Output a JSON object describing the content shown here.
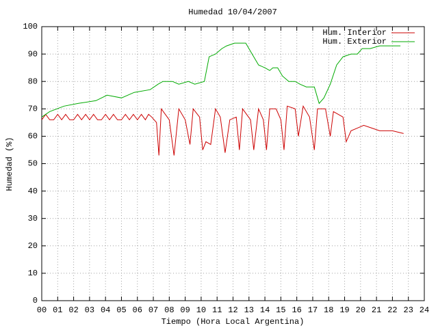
{
  "chart_data": {
    "type": "line",
    "title": "Humedad 10/04/2007",
    "xlabel": "Tiempo (Hora Local Argentina)",
    "ylabel": "Humedad (%)",
    "xlim": [
      0,
      24
    ],
    "ylim": [
      0,
      100
    ],
    "xticks": [
      {
        "value": 0,
        "label": "00"
      },
      {
        "value": 1,
        "label": "01"
      },
      {
        "value": 2,
        "label": "02"
      },
      {
        "value": 3,
        "label": "03"
      },
      {
        "value": 4,
        "label": "04"
      },
      {
        "value": 5,
        "label": "05"
      },
      {
        "value": 6,
        "label": "06"
      },
      {
        "value": 7,
        "label": "07"
      },
      {
        "value": 8,
        "label": "08"
      },
      {
        "value": 9,
        "label": "09"
      },
      {
        "value": 10,
        "label": "10"
      },
      {
        "value": 11,
        "label": "11"
      },
      {
        "value": 12,
        "label": "12"
      },
      {
        "value": 13,
        "label": "13"
      },
      {
        "value": 14,
        "label": "14"
      },
      {
        "value": 15,
        "label": "15"
      },
      {
        "value": 16,
        "label": "16"
      },
      {
        "value": 17,
        "label": "17"
      },
      {
        "value": 18,
        "label": "18"
      },
      {
        "value": 19,
        "label": "19"
      },
      {
        "value": 20,
        "label": "20"
      },
      {
        "value": 21,
        "label": "21"
      },
      {
        "value": 22,
        "label": "22"
      },
      {
        "value": 23,
        "label": "23"
      },
      {
        "value": 24,
        "label": "24"
      }
    ],
    "yticks": [
      0,
      10,
      20,
      30,
      40,
      50,
      60,
      70,
      80,
      90,
      100
    ],
    "grid": true,
    "legend": "top-right",
    "series": [
      {
        "name": "Hum. Interior",
        "color": "#cc0000",
        "x": [
          0,
          0.25,
          0.5,
          0.75,
          1,
          1.25,
          1.5,
          1.75,
          2,
          2.25,
          2.5,
          2.75,
          3,
          3.25,
          3.5,
          3.75,
          4,
          4.25,
          4.5,
          4.75,
          5,
          5.25,
          5.5,
          5.75,
          6,
          6.25,
          6.5,
          6.7,
          6.9,
          7.2,
          7.35,
          7.5,
          8.0,
          8.3,
          8.6,
          9.0,
          9.3,
          9.5,
          9.9,
          10.1,
          10.3,
          10.6,
          10.9,
          11.2,
          11.5,
          11.8,
          12.2,
          12.4,
          12.6,
          13.1,
          13.3,
          13.6,
          13.9,
          14.1,
          14.3,
          14.7,
          15.0,
          15.2,
          15.4,
          15.9,
          16.1,
          16.4,
          16.8,
          17.1,
          17.3,
          17.8,
          18.1,
          18.3,
          18.9,
          19.1,
          19.4,
          19.8,
          20.2,
          20.7,
          21.2,
          22.0,
          22.7
        ],
        "values": [
          66,
          68,
          66,
          66,
          68,
          66,
          68,
          66,
          66,
          68,
          66,
          68,
          66,
          68,
          66,
          66,
          68,
          66,
          68,
          66,
          66,
          68,
          66,
          68,
          66,
          68,
          66,
          68,
          67,
          65,
          53,
          70,
          66,
          53,
          70,
          66,
          57,
          70,
          67,
          55,
          58,
          57,
          70,
          67,
          54,
          66,
          67,
          55,
          70,
          66,
          55,
          70,
          66,
          55,
          70,
          70,
          66,
          55,
          71,
          70,
          60,
          71,
          67,
          55,
          70,
          70,
          60,
          69,
          67,
          58,
          62,
          63,
          64,
          63,
          62,
          62,
          61
        ]
      },
      {
        "name": "Hum. Exterior",
        "color": "#00aa00",
        "x": [
          0,
          0.5,
          1.4,
          2.3,
          3.4,
          4.1,
          5,
          5.8,
          6.8,
          7.3,
          7.6,
          8.2,
          8.6,
          9.2,
          9.6,
          10.2,
          10.5,
          10.9,
          11.3,
          11.6,
          12.1,
          12.8,
          13.2,
          13.6,
          14.0,
          14.3,
          14.5,
          14.8,
          15.1,
          15.5,
          15.9,
          16.2,
          16.6,
          17.1,
          17.4,
          17.7,
          18.1,
          18.5,
          18.9,
          19.4,
          19.8,
          20.1,
          20.6,
          21.2,
          22.5
        ],
        "values": [
          67,
          69,
          71,
          72,
          73,
          75,
          74,
          76,
          77,
          79,
          80,
          80,
          79,
          80,
          79,
          80,
          89,
          90,
          92,
          93,
          94,
          94,
          90,
          86,
          85,
          84,
          85,
          85,
          82,
          80,
          80,
          79,
          78,
          78,
          72,
          74,
          79,
          86,
          89,
          90,
          90,
          92,
          92,
          93,
          93
        ]
      }
    ]
  }
}
